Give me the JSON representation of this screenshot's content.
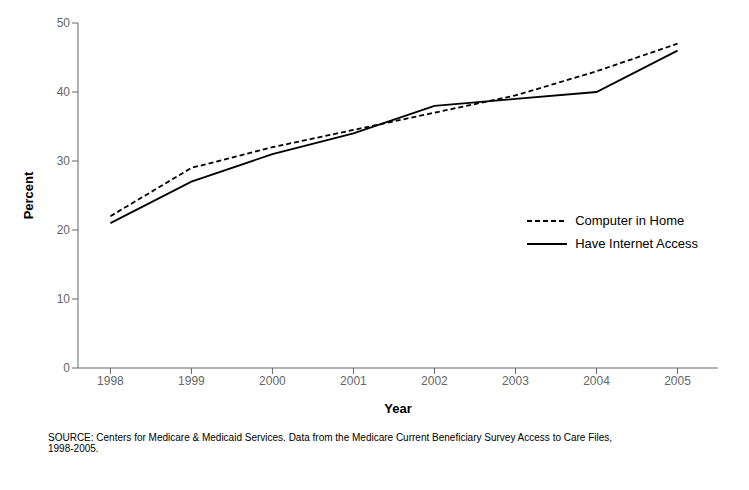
{
  "chart_data": {
    "type": "line",
    "xlabel": "Year",
    "ylabel": "Percent",
    "annotation": "SOURCE: Centers for Medicare & Medicaid Services. Data from the Medicare Current Beneficiary Survey Access to Care Files,\n1998-2005.",
    "x": [
      1998,
      1999,
      2000,
      2001,
      2002,
      2003,
      2004,
      2005
    ],
    "series": [
      {
        "name": "Computer in Home",
        "color": "#000000",
        "line_style": "dashed",
        "values": [
          22,
          29,
          32,
          34.5,
          37,
          39.5,
          43,
          47
        ]
      },
      {
        "name": "Have Internet Access",
        "color": "#000000",
        "line_style": "solid",
        "values": [
          21,
          27,
          31,
          34,
          38,
          39,
          40,
          46
        ]
      }
    ],
    "xlim": [
      1997.6,
      2005.5
    ],
    "xticks": [
      1998,
      1999,
      2000,
      2001,
      2002,
      2003,
      2004,
      2005
    ],
    "ylim": [
      0,
      50
    ],
    "yticks": [
      0,
      10,
      20,
      30,
      40,
      50
    ],
    "grid": false,
    "legend": "lower right"
  }
}
